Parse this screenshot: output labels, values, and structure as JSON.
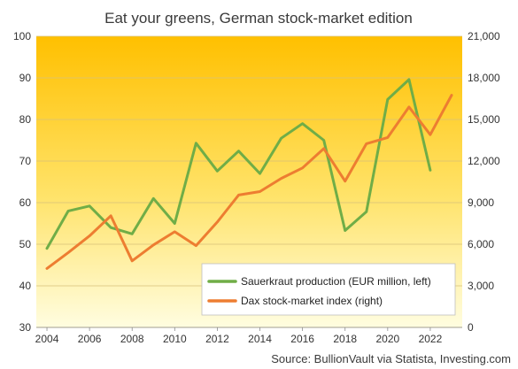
{
  "chart_data": {
    "type": "line",
    "title": "Eat your greens, German stock-market edition",
    "source": "Source: BullionVault via Statista, Investing.com",
    "x_ticks": [
      "2004",
      "2006",
      "2008",
      "2010",
      "2012",
      "2014",
      "2016",
      "2018",
      "2020",
      "2022"
    ],
    "x_range": [
      2003.5,
      2023.5
    ],
    "y_left": {
      "range": [
        30,
        100
      ],
      "ticks": [
        "30",
        "40",
        "50",
        "60",
        "70",
        "80",
        "90",
        "100"
      ]
    },
    "y_right": {
      "range": [
        0,
        21000
      ],
      "ticks": [
        "0",
        "3,000",
        "6,000",
        "9,000",
        "12,000",
        "15,000",
        "18,000",
        "21,000"
      ]
    },
    "grid": true,
    "legend_position": "bottom-right",
    "series": [
      {
        "name": "Sauerkraut production (EUR million, left)",
        "axis": "left",
        "color": "#70ad47",
        "x": [
          2004,
          2005,
          2006,
          2007,
          2008,
          2009,
          2010,
          2011,
          2012,
          2013,
          2014,
          2015,
          2016,
          2017,
          2018,
          2019,
          2020,
          2021,
          2022
        ],
        "values": [
          49,
          58,
          59.2,
          54,
          52.5,
          61,
          55,
          74.3,
          67.6,
          72.4,
          67,
          75.5,
          79,
          75,
          53.3,
          57.8,
          84.8,
          89.6,
          67.8
        ]
      },
      {
        "name": "Dax stock-market index (right)",
        "axis": "right",
        "color": "#ed7d31",
        "x": [
          2004,
          2005,
          2006,
          2007,
          2008,
          2009,
          2010,
          2011,
          2012,
          2013,
          2014,
          2015,
          2016,
          2017,
          2018,
          2019,
          2020,
          2021,
          2022,
          2023
        ],
        "values": [
          4250,
          5400,
          6600,
          8050,
          4800,
          5950,
          6900,
          5900,
          7600,
          9550,
          9800,
          10750,
          11500,
          12900,
          10550,
          13250,
          13700,
          15900,
          13900,
          16750
        ]
      }
    ]
  }
}
